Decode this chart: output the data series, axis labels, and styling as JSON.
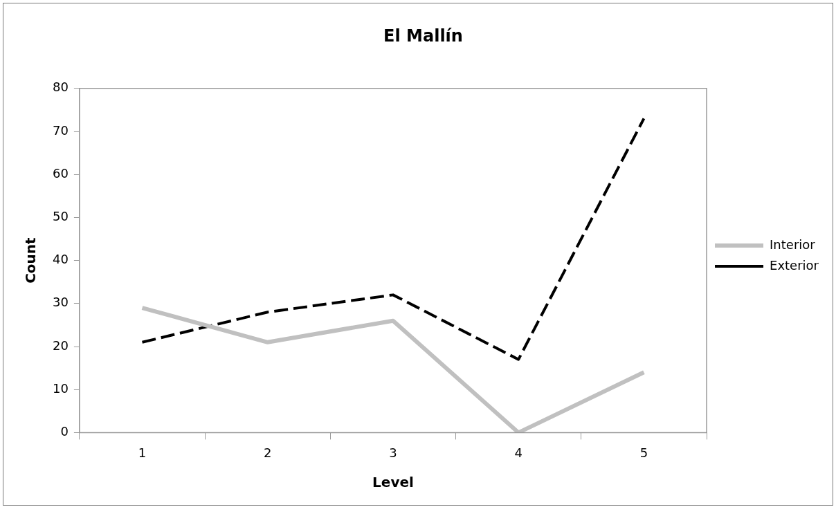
{
  "chart_data": {
    "type": "line",
    "title": "El Mallín",
    "xlabel": "Level",
    "ylabel": "Count",
    "categories": [
      "1",
      "2",
      "3",
      "4",
      "5"
    ],
    "series": [
      {
        "name": "Interior",
        "color": "#c0c0c0",
        "line_style": "solid",
        "values": [
          29,
          21,
          26,
          0,
          14
        ]
      },
      {
        "name": "Exterior",
        "color": "#000000",
        "line_style": "dashed",
        "values": [
          21,
          28,
          32,
          17,
          73
        ]
      }
    ],
    "ylim": [
      0,
      80
    ],
    "yticks": [
      0,
      10,
      20,
      30,
      40,
      50,
      60,
      70,
      80
    ],
    "grid": false,
    "legend": "right",
    "marker": "none"
  }
}
